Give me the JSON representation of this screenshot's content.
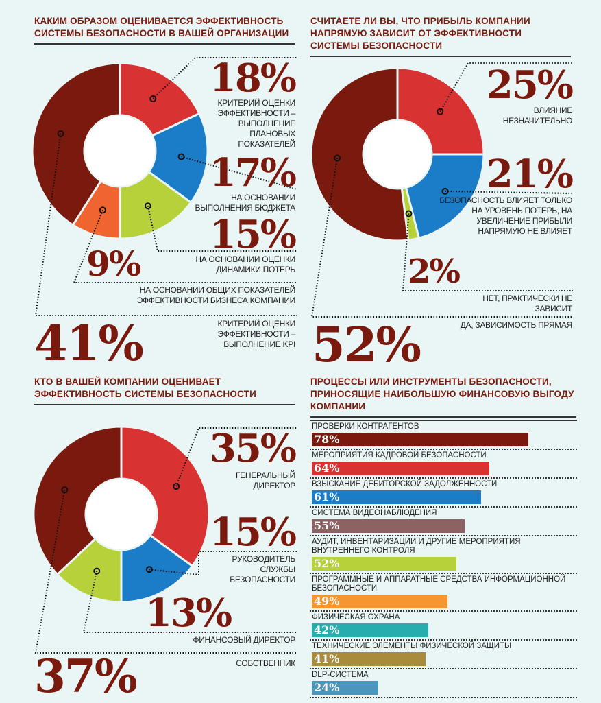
{
  "colors": {
    "background": "#eaf6f5",
    "accent": "#7a1a0e",
    "red": "#d93232",
    "blue": "#1b7cc7",
    "green": "#b6d13a",
    "orange": "#f06430",
    "dark_red": "#7a1a0e"
  },
  "chart_data": [
    {
      "type": "pie",
      "donut": true,
      "title": "КАКИМ ОБРАЗОМ ОЦЕНИВАЕТСЯ ЭФФЕКТИВНОСТЬ СИСТЕМЫ БЕЗОПАСНОСТИ В ВАШЕЙ ОРГАНИЗАЦИИ",
      "slices": [
        {
          "label": "КРИТЕРИЙ ОЦЕНКИ ЭФФЕКТИВНОСТИ – ВЫПОЛНЕНИЕ ПЛАНОВЫХ ПОКАЗАТЕЛЕЙ",
          "value": 18,
          "text": "18%",
          "color": "#d93232"
        },
        {
          "label": "НА ОСНОВАНИИ ВЫПОЛНЕНИЯ БЮДЖЕТА",
          "value": 17,
          "text": "17%",
          "color": "#1b7cc7"
        },
        {
          "label": "НА ОСНОВАНИИ ОЦЕНКИ ДИНАМИКИ ПОТЕРЬ",
          "value": 15,
          "text": "15%",
          "color": "#b6d13a"
        },
        {
          "label": "НА ОСНОВАНИИ ОБЩИХ ПОКАЗАТЕЛЕЙ ЭФФЕКТИВНОСТИ БИЗНЕСА КОМПАНИИ",
          "value": 9,
          "text": "9%",
          "color": "#f06430"
        },
        {
          "label": "КРИТЕРИЙ ОЦЕНКИ ЭФФЕКТИВНОСТИ – ВЫПОЛНЕНИЕ KPI",
          "value": 41,
          "text": "41%",
          "color": "#7a1a0e"
        }
      ]
    },
    {
      "type": "pie",
      "donut": true,
      "title": "СЧИТАЕТЕ ЛИ ВЫ, ЧТО ПРИБЫЛЬ КОМПАНИИ НАПРЯМУЮ ЗАВИСИТ ОТ ЭФФЕКТИВНОСТИ СИСТЕМЫ БЕЗОПАСНОСТИ",
      "slices": [
        {
          "label": "ВЛИЯНИЕ НЕЗНАЧИТЕЛЬНО",
          "value": 25,
          "text": "25%",
          "color": "#d93232"
        },
        {
          "label": "БЕЗОПАСНОСТЬ ВЛИЯЕТ ТОЛЬКО НА УРОВЕНЬ ПОТЕРЬ, НА УВЕЛИЧЕНИЕ ПРИБЫЛИ НАПРЯМУЮ НЕ ВЛИЯЕТ",
          "value": 21,
          "text": "21%",
          "color": "#1b7cc7"
        },
        {
          "label": "НЕТ, ПРАКТИЧЕСКИ НЕ ЗАВИСИТ",
          "value": 2,
          "text": "2%",
          "color": "#b6d13a"
        },
        {
          "label": "ДА, ЗАВИСИМОСТЬ ПРЯМАЯ",
          "value": 52,
          "text": "52%",
          "color": "#7a1a0e"
        }
      ]
    },
    {
      "type": "pie",
      "donut": true,
      "title": "КТО В ВАШЕЙ КОМПАНИИ ОЦЕНИВАЕТ ЭФФЕКТИВНОСТЬ СИСТЕМЫ БЕЗОПАСНОСТИ",
      "slices": [
        {
          "label": "ГЕНЕРАЛЬНЫЙ ДИРЕКТОР",
          "value": 35,
          "text": "35%",
          "color": "#d93232"
        },
        {
          "label": "РУКОВОДИТЕЛЬ СЛУЖБЫ БЕЗОПАСНОСТИ",
          "value": 15,
          "text": "15%",
          "color": "#1b7cc7"
        },
        {
          "label": "ФИНАНСОВЫЙ ДИРЕКТОР",
          "value": 13,
          "text": "13%",
          "color": "#b6d13a"
        },
        {
          "label": "СОБСТВЕННИК",
          "value": 37,
          "text": "37%",
          "color": "#7a1a0e"
        }
      ]
    },
    {
      "type": "bar",
      "orientation": "horizontal",
      "title": "ПРОЦЕССЫ ИЛИ ИНСТРУМЕНТЫ БЕЗОПАСНОСТИ, ПРИНОСЯЩИЕ НАИБОЛЬШУЮ ФИНАНСОВУЮ ВЫГОДУ КОМПАНИИ",
      "xlim": [
        0,
        100
      ],
      "bars": [
        {
          "label": "ПРОВЕРКИ КОНТРАГЕНТОВ",
          "value": 78,
          "text": "78%",
          "color": "#7a1a0e"
        },
        {
          "label": "МЕРОПРИЯТИЯ КАДРОВОЙ БЕЗОПАСНОСТИ",
          "value": 64,
          "text": "64%",
          "color": "#d93232"
        },
        {
          "label": "ВЗЫСКАНИЕ ДЕБИТОРСКОЙ ЗАДОЛЖЕННОСТИ",
          "value": 61,
          "text": "61%",
          "color": "#1b7cc7"
        },
        {
          "label": "СИСТЕМА ВИДЕОНАБЛЮДЕНИЯ",
          "value": 55,
          "text": "55%",
          "color": "#8c6262"
        },
        {
          "label": "АУДИТ, ИНВЕНТАРИЗАЦИИ И ДРУГИЕ МЕРОПРИЯТИЯ ВНУТРЕННЕГО КОНТРОЛЯ",
          "value": 52,
          "text": "52%",
          "color": "#b6d13a"
        },
        {
          "label": "ПРОГРАММНЫЕ И АППАРАТНЫЕ СРЕДСТВА ИНФОРМАЦИОННОЙ БЕЗОПАСНОСТИ",
          "value": 49,
          "text": "49%",
          "color": "#f7962e"
        },
        {
          "label": "ФИЗИЧЕСКАЯ ОХРАНА",
          "value": 42,
          "text": "42%",
          "color": "#26aeae"
        },
        {
          "label": "ТЕХНИЧЕСКИЕ ЭЛЕМЕНТЫ ФИЗИЧЕСКОЙ ЗАЩИТЫ",
          "value": 41,
          "text": "41%",
          "color": "#a88c3c"
        },
        {
          "label": "DLP-СИСТЕМА",
          "value": 24,
          "text": "24%",
          "color": "#4b96bd"
        }
      ]
    }
  ]
}
